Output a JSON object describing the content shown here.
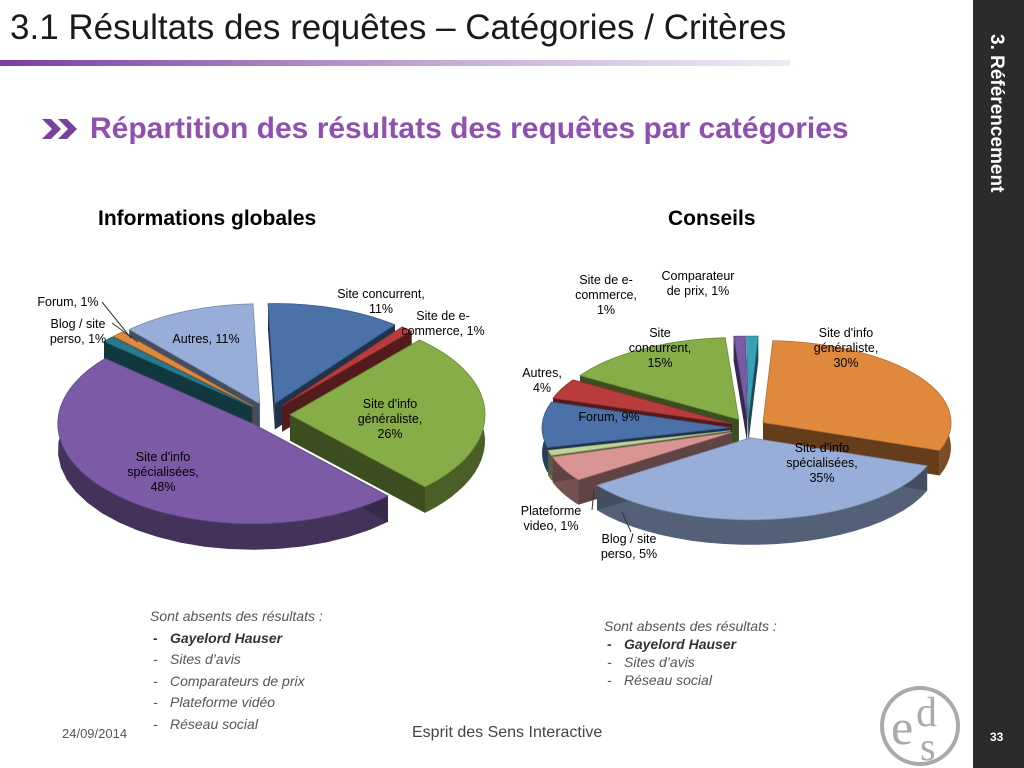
{
  "header": {
    "title": "3.1 Résultats des requêtes – Catégories / Critères"
  },
  "sidebar": {
    "section_label": "3. Référencement"
  },
  "subtitle": {
    "text": "Répartition des résultats des requêtes par catégories"
  },
  "colors": {
    "accent": "#9050b0",
    "sidebar": "#2b2b2b"
  },
  "chart_data": [
    {
      "type": "pie",
      "title": "Informations globales",
      "slices": [
        {
          "label": "Site concurrent, 11%",
          "lines": [
            "Site concurrent,",
            "11%"
          ],
          "value": 11,
          "color": "#4a72a8"
        },
        {
          "label": "Site de e-commerce, 1%",
          "lines": [
            "Site de e-",
            "commerce, 1%"
          ],
          "value": 1,
          "color": "#b83c3c"
        },
        {
          "label": "Site d'info généraliste, 26%",
          "lines": [
            "Site d'info",
            "généraliste,",
            "26%"
          ],
          "value": 26,
          "color": "#86ad47"
        },
        {
          "label": "Site d'info spécialisées, 48%",
          "lines": [
            "Site d'info",
            "spécialisées,",
            "48%"
          ],
          "value": 48,
          "color": "#7b5aa6"
        },
        {
          "label": "Blog / site perso, 1%",
          "lines": [
            "Blog / site",
            "perso, 1%"
          ],
          "value": 1,
          "color": "#267a8c"
        },
        {
          "label": "Forum, 1%",
          "lines": [
            "Forum, 1%"
          ],
          "value": 1,
          "color": "#e0883c"
        },
        {
          "label": "Autres, 11%",
          "lines": [
            "Autres, 11%"
          ],
          "value": 11,
          "color": "#98aed8"
        }
      ]
    },
    {
      "type": "pie",
      "title": "Conseils",
      "slices": [
        {
          "label": "Site d'info généraliste, 30%",
          "lines": [
            "Site d'info",
            "généraliste,",
            "30%"
          ],
          "value": 30,
          "color": "#e0883c"
        },
        {
          "label": "Site d'info spécialisées, 35%",
          "lines": [
            "Site d'info",
            "spécialisées,",
            "35%"
          ],
          "value": 35,
          "color": "#98aed8"
        },
        {
          "label": "Blog / site perso, 5%",
          "lines": [
            "Blog / site",
            "perso, 5%"
          ],
          "value": 5,
          "color": "#d99494"
        },
        {
          "label": "Plateforme video, 1%",
          "lines": [
            "Plateforme",
            "video, 1%"
          ],
          "value": 1,
          "color": "#c0d498"
        },
        {
          "label": "Forum, 9%",
          "lines": [
            "Forum, 9%"
          ],
          "value": 9,
          "color": "#4a72a8"
        },
        {
          "label": "Autres, 4%",
          "lines": [
            "Autres,",
            "4%"
          ],
          "value": 4,
          "color": "#b83c3c"
        },
        {
          "label": "Site concurrent, 15%",
          "lines": [
            "Site",
            "concurrent,",
            "15%"
          ],
          "value": 15,
          "color": "#86ad47"
        },
        {
          "label": "Site de e-commerce, 1%",
          "lines": [
            "Site de e-",
            "commerce,",
            "1%"
          ],
          "value": 1,
          "color": "#7b5aa6"
        },
        {
          "label": "Comparateur de prix, 1%",
          "lines": [
            "Comparateur",
            "de prix, 1%"
          ],
          "value": 1,
          "color": "#3aa0b8"
        }
      ]
    }
  ],
  "notes_left": {
    "heading": "Sont absents des résultats :",
    "items": [
      "Gayelord Hauser",
      "Sites d’avis",
      "Comparateurs de prix",
      "Plateforme vidéo",
      "Réseau social"
    ]
  },
  "notes_right": {
    "heading": "Sont absents des résultats :",
    "items": [
      "Gayelord Hauser",
      "Sites d’avis",
      "Réseau social"
    ]
  },
  "footer": {
    "date": "24/09/2014",
    "company": "Esprit des Sens Interactive",
    "page": "33"
  }
}
